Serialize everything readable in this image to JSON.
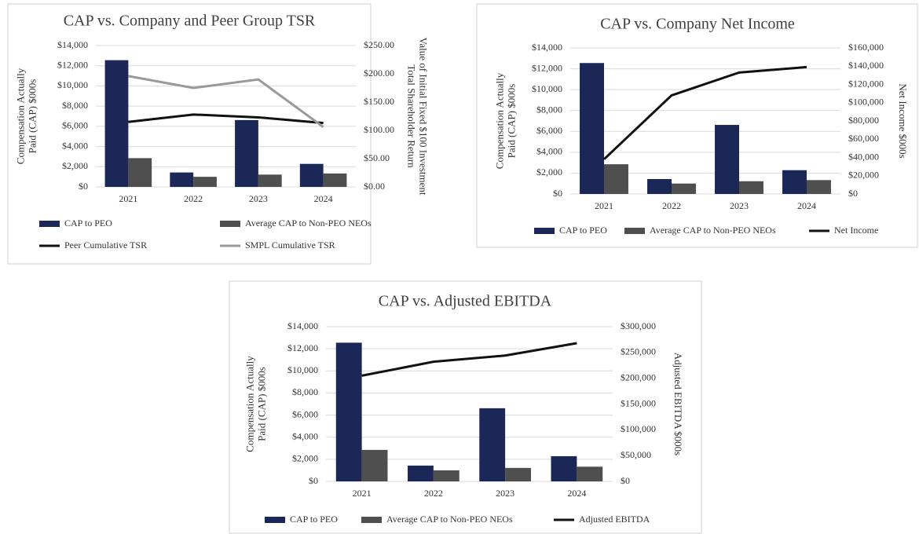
{
  "chart_data": [
    {
      "type": "combo",
      "title": "CAP vs. Company and Peer Group TSR",
      "y_label": [
        "Compensation Actually",
        "Paid (CAP) $000s"
      ],
      "y2_label": [
        "Total Shareholder Return",
        "Value of Initial Fixed $100 Investment"
      ],
      "categories": [
        "2021",
        "2022",
        "2023",
        "2024"
      ],
      "series": [
        {
          "name": "CAP to PEO",
          "type": "bar",
          "color": "#1b2756",
          "values": [
            12550,
            1430,
            6620,
            2280
          ]
        },
        {
          "name": "Average CAP to Non-PEO NEOs",
          "type": "bar",
          "color": "#4f4f4f",
          "values": [
            2850,
            1000,
            1220,
            1330
          ]
        },
        {
          "name": "Peer Cumulative TSR",
          "type": "line",
          "axis": "y2",
          "color": "#111111",
          "values": [
            115,
            128,
            123,
            113
          ]
        },
        {
          "name": "SMPL Cumulative TSR",
          "type": "line",
          "axis": "y2",
          "color": "#999999",
          "values": [
            196,
            175,
            190,
            106
          ]
        }
      ],
      "ylim": [
        0,
        14000
      ],
      "yticks": [
        {
          "value": 0,
          "label": "$0"
        },
        {
          "value": 2000,
          "label": "$2,000"
        },
        {
          "value": 4000,
          "label": "$4,000"
        },
        {
          "value": 6000,
          "label": "$6,000"
        },
        {
          "value": 8000,
          "label": "$8,000"
        },
        {
          "value": 10000,
          "label": "$10,000"
        },
        {
          "value": 12000,
          "label": "$12,000"
        },
        {
          "value": 14000,
          "label": "$14,000"
        }
      ],
      "y2lim": [
        0,
        250
      ],
      "y2ticks": [
        {
          "value": 0,
          "label": "$0.00"
        },
        {
          "value": 50,
          "label": "$50.00"
        },
        {
          "value": 100,
          "label": "$100.00"
        },
        {
          "value": 150,
          "label": "$150.00"
        },
        {
          "value": 200,
          "label": "$200.00"
        },
        {
          "value": 250,
          "label": "$250.00"
        }
      ],
      "grid": true
    },
    {
      "type": "combo",
      "title": "CAP vs. Company Net Income",
      "y_label": [
        "Compensation Actually",
        "Paid (CAP) $000s"
      ],
      "y2_label": [
        "Net Income $000s"
      ],
      "categories": [
        "2021",
        "2022",
        "2023",
        "2024"
      ],
      "series": [
        {
          "name": "CAP to PEO",
          "type": "bar",
          "color": "#1b2756",
          "values": [
            12550,
            1430,
            6620,
            2280
          ]
        },
        {
          "name": "Average CAP to Non-PEO NEOs",
          "type": "bar",
          "color": "#4f4f4f",
          "values": [
            2850,
            1000,
            1220,
            1330
          ]
        },
        {
          "name": "Net Income",
          "type": "line",
          "axis": "y2",
          "color": "#111111",
          "values": [
            38000,
            108000,
            133000,
            139000
          ]
        }
      ],
      "ylim": [
        0,
        14000
      ],
      "yticks": [
        {
          "value": 0,
          "label": "$0"
        },
        {
          "value": 2000,
          "label": "$2,000"
        },
        {
          "value": 4000,
          "label": "$4,000"
        },
        {
          "value": 6000,
          "label": "$6,000"
        },
        {
          "value": 8000,
          "label": "$8,000"
        },
        {
          "value": 10000,
          "label": "$10,000"
        },
        {
          "value": 12000,
          "label": "$12,000"
        },
        {
          "value": 14000,
          "label": "$14,000"
        }
      ],
      "y2lim": [
        0,
        160000
      ],
      "y2ticks": [
        {
          "value": 0,
          "label": "$0"
        },
        {
          "value": 20000,
          "label": "$20,000"
        },
        {
          "value": 40000,
          "label": "$40,000"
        },
        {
          "value": 60000,
          "label": "$60,000"
        },
        {
          "value": 80000,
          "label": "$80,000"
        },
        {
          "value": 100000,
          "label": "$100,000"
        },
        {
          "value": 120000,
          "label": "$120,000"
        },
        {
          "value": 140000,
          "label": "$140,000"
        },
        {
          "value": 160000,
          "label": "$160,000"
        }
      ],
      "grid": true
    },
    {
      "type": "combo",
      "title": "CAP vs. Adjusted EBITDA",
      "y_label": [
        "Compensation Actually",
        "Paid (CAP) $000s"
      ],
      "y2_label": [
        "Adjusted EBITDA $000s"
      ],
      "categories": [
        "2021",
        "2022",
        "2023",
        "2024"
      ],
      "series": [
        {
          "name": "CAP to PEO",
          "type": "bar",
          "color": "#1b2756",
          "values": [
            12550,
            1430,
            6620,
            2280
          ]
        },
        {
          "name": "Average CAP to Non-PEO NEOs",
          "type": "bar",
          "color": "#4f4f4f",
          "values": [
            2850,
            1000,
            1220,
            1330
          ]
        },
        {
          "name": "Adjusted EBITDA",
          "type": "line",
          "axis": "y2",
          "color": "#111111",
          "values": [
            205000,
            232000,
            244000,
            268000
          ]
        }
      ],
      "ylim": [
        0,
        14000
      ],
      "yticks": [
        {
          "value": 0,
          "label": "$0"
        },
        {
          "value": 2000,
          "label": "$2,000"
        },
        {
          "value": 4000,
          "label": "$4,000"
        },
        {
          "value": 6000,
          "label": "$6,000"
        },
        {
          "value": 8000,
          "label": "$8,000"
        },
        {
          "value": 10000,
          "label": "$10,000"
        },
        {
          "value": 12000,
          "label": "$12,000"
        },
        {
          "value": 14000,
          "label": "$14,000"
        }
      ],
      "y2lim": [
        0,
        300000
      ],
      "y2ticks": [
        {
          "value": 0,
          "label": "$0"
        },
        {
          "value": 50000,
          "label": "$50,000"
        },
        {
          "value": 100000,
          "label": "$100,000"
        },
        {
          "value": 150000,
          "label": "$150,000"
        },
        {
          "value": 200000,
          "label": "$200,000"
        },
        {
          "value": 250000,
          "label": "$250,000"
        },
        {
          "value": 300000,
          "label": "$300,000"
        }
      ],
      "grid": true
    }
  ]
}
